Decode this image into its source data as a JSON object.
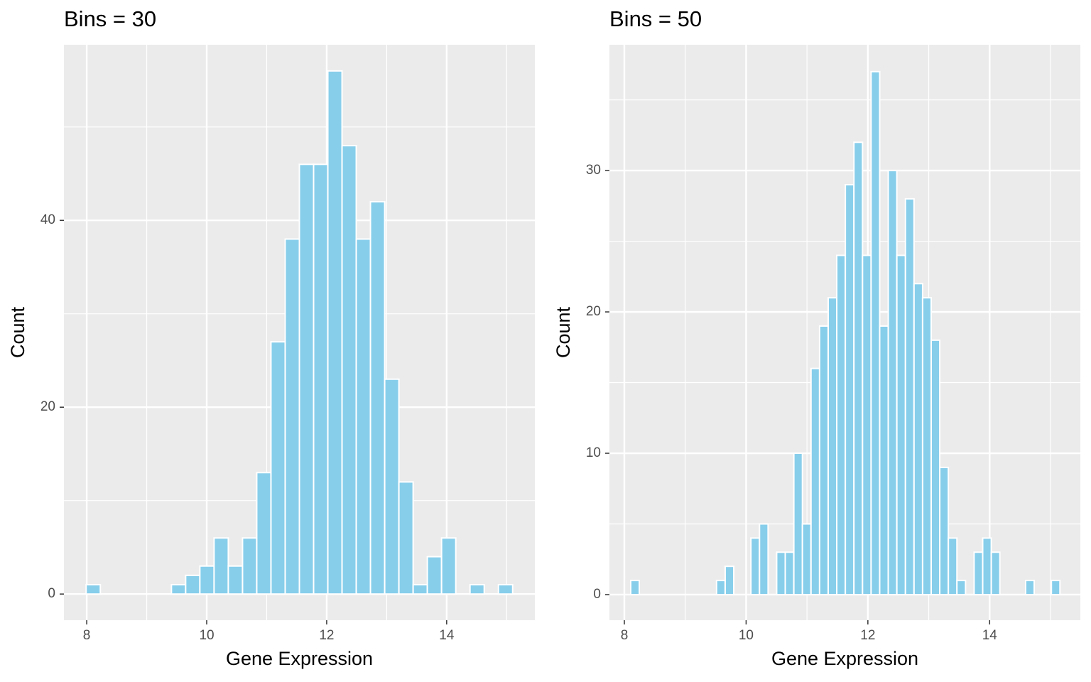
{
  "chart_data": [
    {
      "type": "histogram",
      "title": "Bins = 30",
      "xlabel": "Gene Expression",
      "ylabel": "Count",
      "bins": [
        7.99,
        8.227,
        8.464,
        8.701,
        8.938,
        9.175,
        9.412,
        9.649,
        9.886,
        10.123,
        10.36,
        10.597,
        10.834,
        11.071,
        11.308,
        11.545,
        11.782,
        12.019,
        12.256,
        12.493,
        12.73,
        12.967,
        13.204,
        13.441,
        13.678,
        13.915,
        14.152,
        14.389,
        14.626,
        14.863,
        15.1
      ],
      "values": [
        1,
        0,
        0,
        0,
        0,
        0,
        1,
        2,
        3,
        6,
        3,
        6,
        13,
        27,
        38,
        46,
        46,
        56,
        48,
        38,
        42,
        23,
        12,
        1,
        4,
        6,
        0,
        1,
        0,
        1
      ],
      "color": "#87ceeb",
      "edgecolor": "#ffffff",
      "xlim": [
        7.62,
        15.47
      ],
      "ylim": [
        -2.8,
        58.8
      ],
      "xticks": [
        8,
        10,
        12,
        14
      ],
      "yticks": [
        0,
        20,
        40
      ],
      "grid": true
    },
    {
      "type": "histogram",
      "title": "Bins = 50",
      "xlabel": "Gene Expression",
      "ylabel": "Count",
      "bins": [
        8.105,
        8.246,
        8.387,
        8.528,
        8.669,
        8.81,
        8.951,
        9.092,
        9.233,
        9.374,
        9.515,
        9.656,
        9.797,
        9.938,
        10.079,
        10.22,
        10.361,
        10.502,
        10.643,
        10.784,
        10.925,
        11.066,
        11.207,
        11.348,
        11.489,
        11.63,
        11.771,
        11.912,
        12.053,
        12.194,
        12.335,
        12.476,
        12.617,
        12.758,
        12.899,
        13.04,
        13.181,
        13.322,
        13.463,
        13.604,
        13.745,
        13.886,
        14.027,
        14.168,
        14.309,
        14.45,
        14.591,
        14.732,
        14.873,
        15.014,
        15.155
      ],
      "values": [
        1,
        0,
        0,
        0,
        0,
        0,
        0,
        0,
        0,
        0,
        1,
        2,
        0,
        0,
        4,
        5,
        0,
        3,
        3,
        10,
        5,
        16,
        19,
        21,
        24,
        29,
        32,
        24,
        37,
        19,
        30,
        24,
        28,
        22,
        21,
        18,
        9,
        4,
        1,
        0,
        3,
        4,
        3,
        0,
        0,
        0,
        1,
        0,
        0,
        1
      ],
      "color": "#87ceeb",
      "edgecolor": "#ffffff",
      "xlim": [
        7.755,
        15.49
      ],
      "ylim": [
        -1.81,
        38.9
      ],
      "xticks": [
        8,
        10,
        12,
        14
      ],
      "yticks": [
        0,
        10,
        20,
        30
      ],
      "grid": true
    }
  ]
}
